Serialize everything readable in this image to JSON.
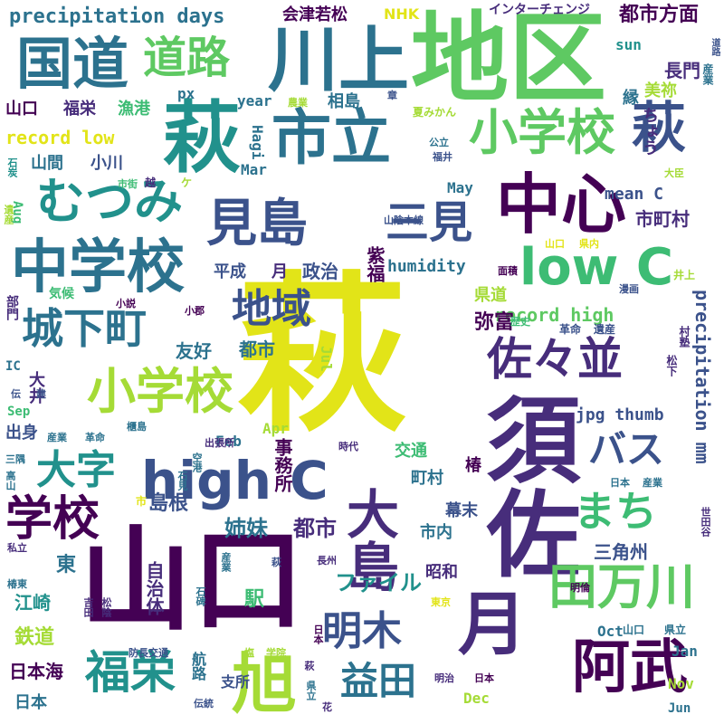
{
  "palette": {
    "yellow": "#e2e418",
    "lime": "#a5db36",
    "green": "#5ec962",
    "seafoam": "#3dbc74",
    "teal": "#21918c",
    "steel": "#2c728e",
    "blue": "#3b528b",
    "indigo": "#472d7b",
    "purple": "#440154"
  },
  "words": [
    "萩",
    "地区",
    "山口",
    "須佐",
    "川上",
    "市立",
    "萩",
    "中心",
    "国道",
    "月",
    "萩",
    "中学校",
    "見島",
    "小学校",
    "むつみ",
    "阿武",
    "三見",
    "小学校",
    "道路",
    "low C",
    "大島",
    "佐々並",
    "田万川",
    "旭",
    "high C",
    "城下町",
    "福栄",
    "学校",
    "明木",
    "地域",
    "バス",
    "大字",
    "益田",
    "まち",
    "都市方面",
    "precipitation days",
    "会津若松",
    "NHK",
    "インターチェンジ",
    "precipitation mm",
    "record high",
    "record low",
    "humidity",
    "jpg thumb",
    "mean C",
    "ファイル",
    "弥富",
    "市町村",
    "島根",
    "姉妹",
    "都市",
    "事務所",
    "江崎",
    "鉄道",
    "日本海",
    "日本",
    "自治体",
    "駅",
    "支所",
    "航路",
    "東",
    "山口",
    "福栄",
    "漁港",
    "山間",
    "小川",
    "平成",
    "月",
    "政治",
    "友好",
    "都市",
    "紫福",
    "長門",
    "美祢",
    "縁",
    "相島",
    "県道",
    "出身",
    "交通",
    "町村",
    "椿",
    "幕末",
    "市内",
    "昭和",
    "三角州",
    "大井",
    "year",
    "px",
    "sun",
    "Hagi",
    "Mar",
    "May",
    "Aug",
    "Jul",
    "Apr",
    "Feb",
    "Sep",
    "Oct",
    "Nov",
    "Dec",
    "Jan",
    "Jun",
    "IC",
    "気候",
    "部門",
    "山陰本線",
    "ちょう",
    "農業",
    "章",
    "夏みかん",
    "公立",
    "福井",
    "大臣",
    "産業",
    "道路",
    "遺産",
    "石炭",
    "市街",
    "越",
    "ケ",
    "漫画",
    "井上",
    "歴史",
    "革命",
    "遺産",
    "松下",
    "村塾",
    "山口",
    "県内",
    "面積",
    "小説",
    "小郡",
    "伝",
    "建",
    "産業",
    "革命",
    "櫃島",
    "出張所",
    "時代",
    "高山",
    "石見",
    "空港",
    "私立",
    "長州",
    "椿東",
    "吉田",
    "松陰",
    "東京",
    "石碑",
    "産業",
    "三隅",
    "日本",
    "産業",
    "日本",
    "明倫",
    "世田谷",
    "防長交通",
    "塩",
    "学院",
    "明治",
    "日本",
    "県立",
    "伝統",
    "花",
    "萩",
    "山口",
    "県立",
    "市",
    "萩"
  ]
}
